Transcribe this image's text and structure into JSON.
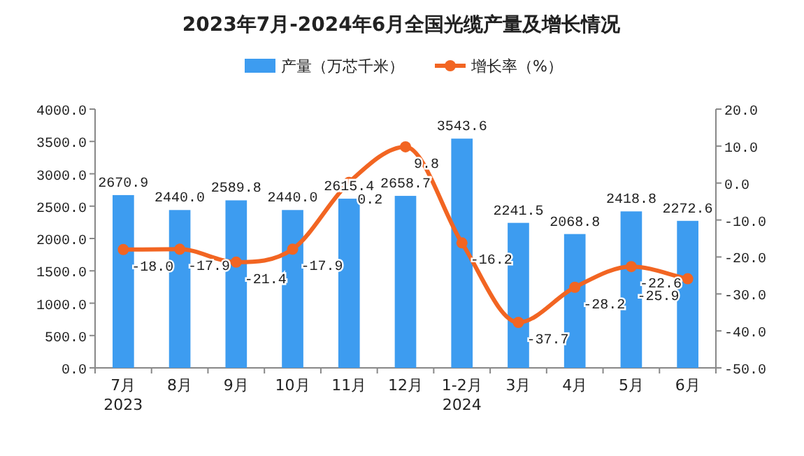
{
  "chart_data": {
    "type": "bar",
    "title": "2023年7月-2024年6月全国光缆产量及增长情况",
    "categories": [
      "7月 2023",
      "8月",
      "9月",
      "10月",
      "11月",
      "12月",
      "1-2月 2024",
      "3月",
      "4月",
      "5月",
      "6月"
    ],
    "series": [
      {
        "name": "产量（万芯千米）",
        "color": "#3d9cf0",
        "values": [
          2670.9,
          2440.0,
          2589.8,
          2440.0,
          2615.4,
          2658.7,
          3543.6,
          2241.5,
          2068.8,
          2418.8,
          2272.6
        ],
        "value_labels": [
          "2670.9",
          "2440.0",
          "2589.8",
          "2440.0",
          "2615.4",
          "2658.7",
          "3543.6",
          "2241.5",
          "2068.8",
          "2418.8",
          "2272.6"
        ]
      },
      {
        "name": "增长率（%）",
        "type": "line",
        "axis": "y2",
        "color": "#f26522",
        "marker": "circle",
        "values": [
          -18.0,
          -17.9,
          -21.4,
          -17.9,
          0.2,
          9.8,
          -16.2,
          -37.7,
          -28.2,
          -22.6,
          -25.9
        ],
        "value_labels": [
          "-18.0",
          "-17.9",
          "-21.4",
          "-17.9",
          "0.2",
          "9.8",
          "-16.2",
          "-37.7",
          "-28.2",
          "-22.6",
          "-25.9"
        ]
      }
    ],
    "ylim": [
      0,
      4000
    ],
    "yticks": [
      {
        "value": 0,
        "label": "0.0"
      },
      {
        "value": 500,
        "label": "500.0"
      },
      {
        "value": 1000,
        "label": "1000.0"
      },
      {
        "value": 1500,
        "label": "1500.0"
      },
      {
        "value": 2000,
        "label": "2000.0"
      },
      {
        "value": 2500,
        "label": "2500.0"
      },
      {
        "value": 3000,
        "label": "3000.0"
      },
      {
        "value": 3500,
        "label": "3500.0"
      },
      {
        "value": 4000,
        "label": "4000.0"
      }
    ],
    "y2lim": [
      -50,
      20
    ],
    "y2ticks": [
      {
        "value": -50,
        "label": "-50.0"
      },
      {
        "value": -40,
        "label": "-40.0"
      },
      {
        "value": -30,
        "label": "-30.0"
      },
      {
        "value": -20,
        "label": "-20.0"
      },
      {
        "value": -10,
        "label": "-10.0"
      },
      {
        "value": 0,
        "label": "0.0"
      },
      {
        "value": 10,
        "label": "10.0"
      },
      {
        "value": 20,
        "label": "20.0"
      }
    ],
    "legend": "top",
    "grid": false
  }
}
